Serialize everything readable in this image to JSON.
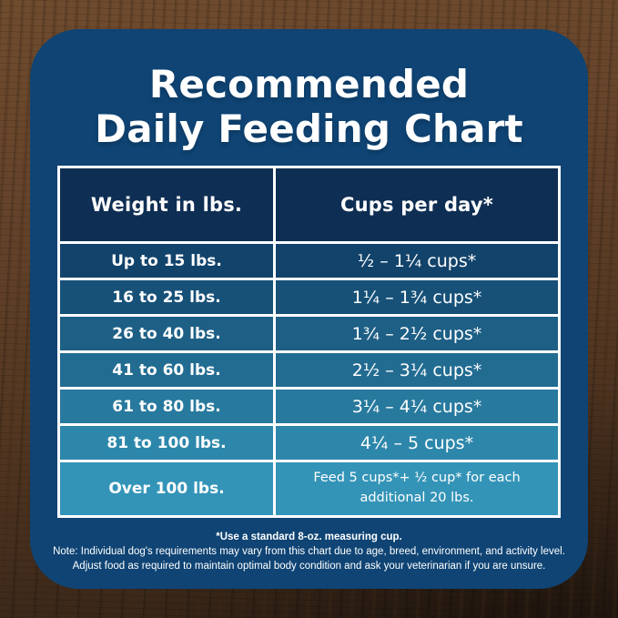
{
  "card": {
    "background_color": "#0f4474",
    "title_line1": "Recommended",
    "title_line2": "Daily Feeding Chart"
  },
  "table": {
    "border_color": "#ffffff",
    "header_bg": "#0f2e54",
    "headers": {
      "weight": "Weight in lbs.",
      "cups": "Cups per day*"
    },
    "rows": [
      {
        "weight": "Up to 15 lbs.",
        "cups": "½ – 1¼ cups*",
        "color": "#12436b"
      },
      {
        "weight": "16 to 25 lbs.",
        "cups": "1¼ – 1¾ cups*",
        "color": "#175178"
      },
      {
        "weight": "26 to 40 lbs.",
        "cups": "1¾ – 2½ cups*",
        "color": "#1d5f85"
      },
      {
        "weight": "41 to 60 lbs.",
        "cups": "2½ – 3¼ cups*",
        "color": "#226c92"
      },
      {
        "weight": "61 to 80 lbs.",
        "cups": "3¼ – 4¼ cups*",
        "color": "#28799e"
      },
      {
        "weight": "81 to 100 lbs.",
        "cups": "4¼ – 5 cups*",
        "color": "#2d87ab"
      },
      {
        "weight": "Over 100 lbs.",
        "cups": "Feed 5 cups*+ ½ cup* for each additional 20 lbs.",
        "color": "#3494b8"
      }
    ]
  },
  "footnotes": {
    "line1": "*Use a standard 8-oz. measuring cup.",
    "line2": "Note: Individual dog's requirements may vary from this chart due to age, breed, environment, and activity level.",
    "line3": "Adjust food as required to maintain optimal body condition and ask your veterinarian if you are unsure."
  },
  "chart_data": {
    "type": "table",
    "title": "Recommended Daily Feeding Chart",
    "columns": [
      "Weight in lbs.",
      "Cups per day*"
    ],
    "rows": [
      [
        "Up to 15 lbs.",
        "½ – 1¼ cups*"
      ],
      [
        "16 to 25 lbs.",
        "1¼ – 1¾ cups*"
      ],
      [
        "26 to 40 lbs.",
        "1¾ – 2½ cups*"
      ],
      [
        "41 to 60 lbs.",
        "2½ – 3¼ cups*"
      ],
      [
        "61 to 80 lbs.",
        "3¼ – 4¼ cups*"
      ],
      [
        "81 to 100 lbs.",
        "4¼ – 5 cups*"
      ],
      [
        "Over 100 lbs.",
        "Feed 5 cups*+ ½ cup* for each additional 20 lbs."
      ]
    ],
    "notes": [
      "*Use a standard 8-oz. measuring cup.",
      "Note: Individual dog's requirements may vary from this chart due to age, breed, environment, and activity level.",
      "Adjust food as required to maintain optimal body condition and ask your veterinarian if you are unsure."
    ],
    "row_color_gradient": [
      "#12436b",
      "#3494b8"
    ],
    "layout": "two-column table, header dark navy, rows shade light toward bottom"
  }
}
